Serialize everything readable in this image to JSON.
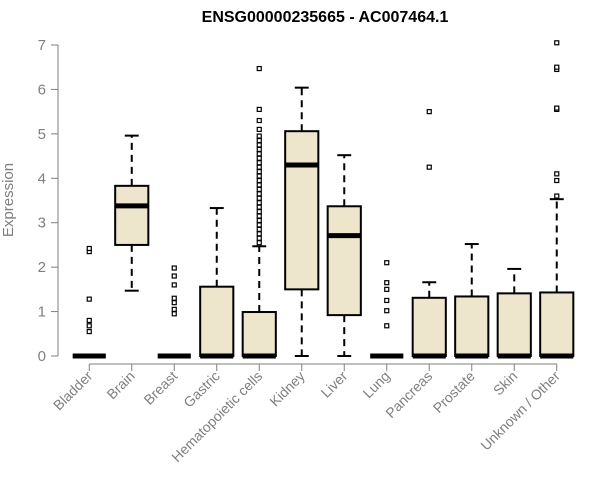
{
  "chart_data": {
    "type": "box",
    "title": "ENSG00000235665 - AC007464.1",
    "ylabel": "Expression",
    "xlabel": "",
    "ylim": [
      0,
      7
    ],
    "yticks": [
      0,
      1,
      2,
      3,
      4,
      5,
      6,
      7
    ],
    "box_fill": "#ede6cd",
    "line_color": "#000000",
    "axis_color": "#7f7f7f",
    "categories": [
      "Bladder",
      "Brain",
      "Breast",
      "Gastric",
      "Hematopoietic cells",
      "Kidney",
      "Liver",
      "Lung",
      "Pancreas",
      "Prostate",
      "Skin",
      "Unknown / Other"
    ],
    "boxes": [
      {
        "category": "Bladder",
        "whisker_low": 0,
        "q1": 0,
        "median": 0,
        "q3": 0,
        "whisker_high": 0,
        "outliers": [
          0.55,
          0.68,
          0.8,
          1.28,
          2.35,
          2.42
        ]
      },
      {
        "category": "Brain",
        "whisker_low": 1.47,
        "q1": 2.5,
        "median": 3.38,
        "q3": 3.83,
        "whisker_high": 4.96,
        "outliers": []
      },
      {
        "category": "Breast",
        "whisker_low": 0,
        "q1": 0,
        "median": 0,
        "q3": 0,
        "whisker_high": 0,
        "outliers": [
          0.95,
          1.05,
          1.2,
          1.3,
          1.6,
          1.8,
          1.98
        ]
      },
      {
        "category": "Gastric",
        "whisker_low": 0,
        "q1": 0,
        "median": 0,
        "q3": 1.56,
        "whisker_high": 3.33,
        "outliers": []
      },
      {
        "category": "Hematopoietic cells",
        "whisker_low": 0,
        "q1": 0,
        "median": 0,
        "q3": 0.99,
        "whisker_high": 2.47,
        "outliers": [
          2.55,
          2.65,
          2.75,
          2.85,
          2.95,
          3.05,
          3.15,
          3.25,
          3.35,
          3.45,
          3.55,
          3.65,
          3.75,
          3.85,
          3.95,
          4.05,
          4.15,
          4.25,
          4.35,
          4.45,
          4.55,
          4.65,
          4.75,
          4.85,
          4.95,
          5.1,
          5.3,
          5.55,
          6.47
        ]
      },
      {
        "category": "Kidney",
        "whisker_low": 0,
        "q1": 1.5,
        "median": 4.3,
        "q3": 5.06,
        "whisker_high": 6.04,
        "outliers": []
      },
      {
        "category": "Liver",
        "whisker_low": 0,
        "q1": 0.92,
        "median": 2.71,
        "q3": 3.37,
        "whisker_high": 4.52,
        "outliers": []
      },
      {
        "category": "Lung",
        "whisker_low": 0,
        "q1": 0,
        "median": 0,
        "q3": 0,
        "whisker_high": 0,
        "outliers": [
          0.68,
          1.02,
          1.25,
          1.5,
          1.65,
          2.1
        ]
      },
      {
        "category": "Pancreas",
        "whisker_low": 0,
        "q1": 0,
        "median": 0,
        "q3": 1.31,
        "whisker_high": 1.66,
        "outliers": [
          4.25,
          5.5
        ]
      },
      {
        "category": "Prostate",
        "whisker_low": 0,
        "q1": 0,
        "median": 0,
        "q3": 1.34,
        "whisker_high": 2.52,
        "outliers": []
      },
      {
        "category": "Skin",
        "whisker_low": 0,
        "q1": 0,
        "median": 0,
        "q3": 1.41,
        "whisker_high": 1.96,
        "outliers": []
      },
      {
        "category": "Unknown / Other",
        "whisker_low": 0,
        "q1": 0,
        "median": 0,
        "q3": 1.43,
        "whisker_high": 3.53,
        "outliers": [
          3.6,
          3.95,
          4.1,
          5.55,
          5.58,
          6.45,
          6.5,
          7.05
        ]
      }
    ]
  }
}
